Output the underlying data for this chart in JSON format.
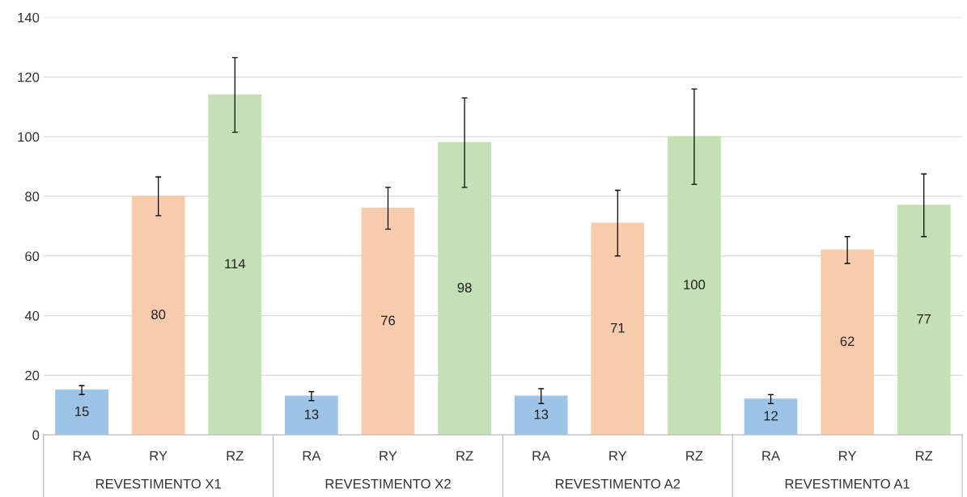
{
  "chart_data": {
    "type": "bar",
    "categories": [
      "REVESTIMENTO X1",
      "REVESTIMENTO X2",
      "REVESTIMENTO A2",
      "REVESTIMENTO A1"
    ],
    "series": [
      {
        "name": "RA",
        "color": "#9dc3e6",
        "values": [
          15,
          13,
          13,
          12
        ],
        "errors": [
          1.5,
          1.5,
          2.5,
          1.5
        ]
      },
      {
        "name": "RY",
        "color": "#f8cbad",
        "values": [
          80,
          76,
          71,
          62
        ],
        "errors": [
          6.5,
          7,
          11,
          4.5
        ]
      },
      {
        "name": "RZ",
        "color": "#c5e0b4",
        "values": [
          114,
          98,
          100,
          77
        ],
        "errors": [
          12.5,
          15,
          16,
          10.5
        ]
      }
    ],
    "ylim": [
      0,
      140
    ],
    "yticks": [
      0,
      20,
      40,
      60,
      80,
      100,
      120,
      140
    ],
    "grid": "y",
    "data_labels": true
  }
}
